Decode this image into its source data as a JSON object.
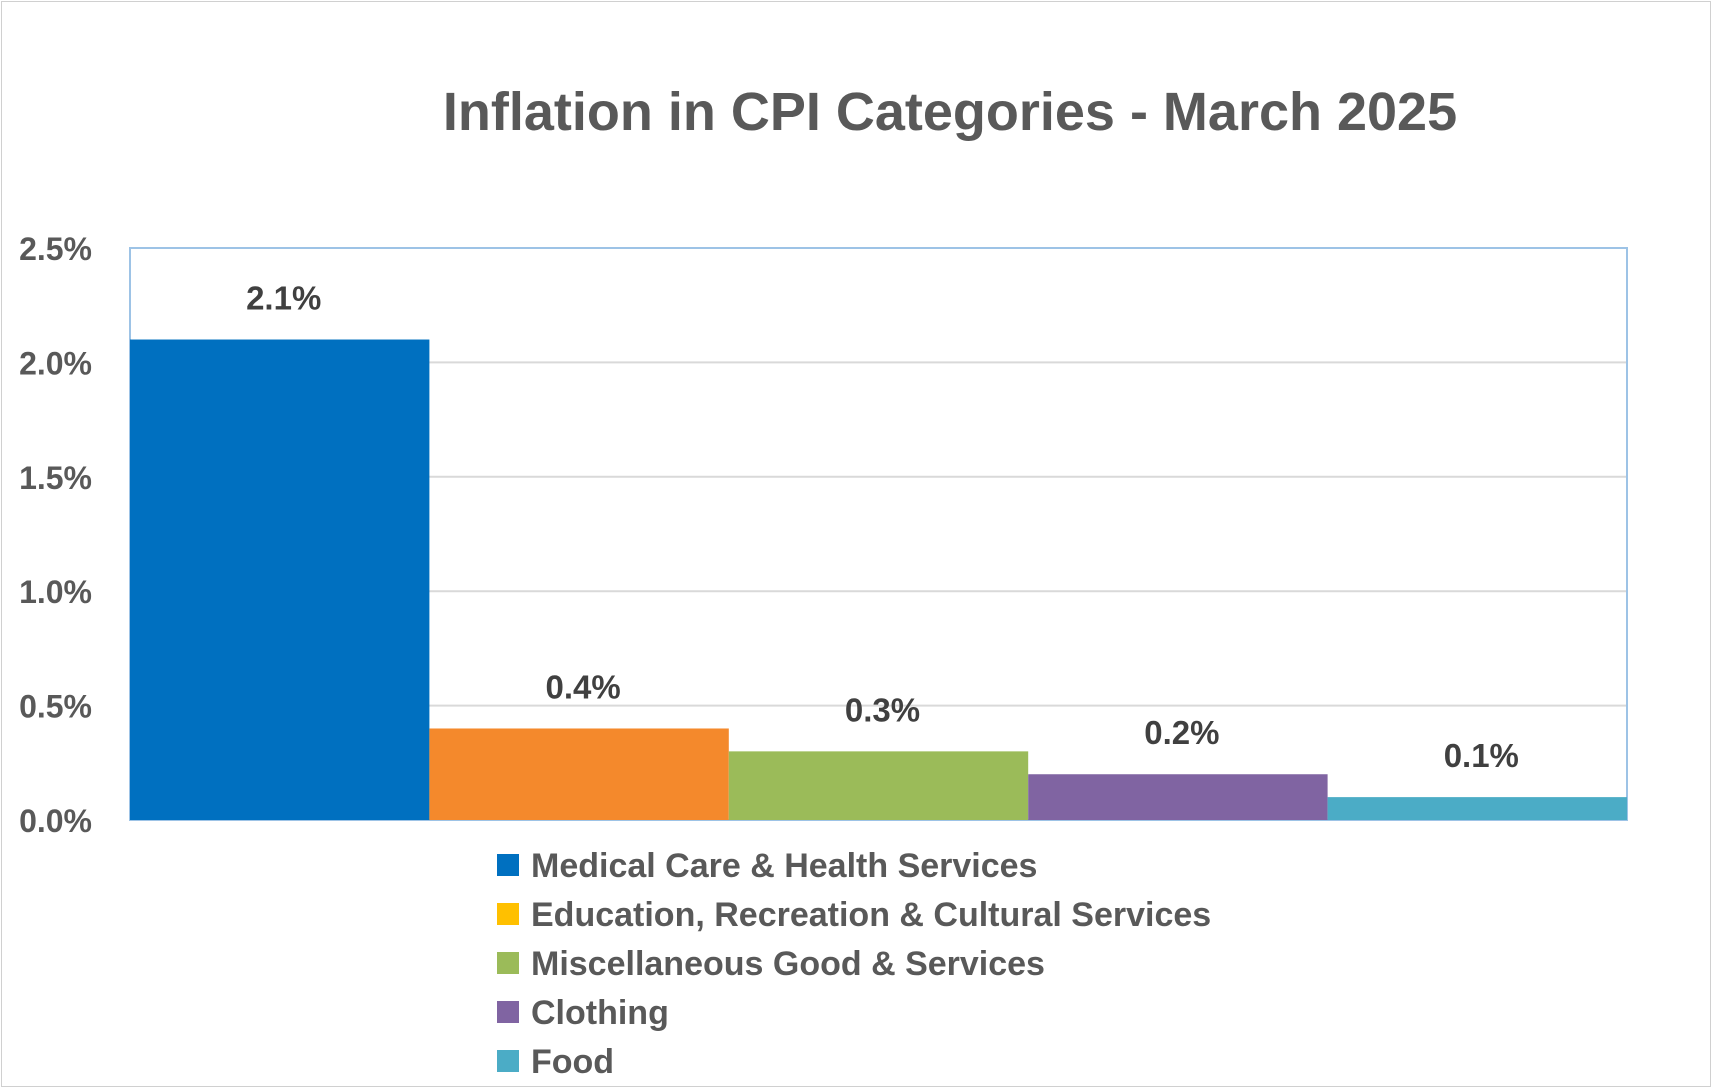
{
  "chart_data": {
    "type": "bar",
    "title": "Inflation in CPI Categories - March 2025",
    "xlabel": "",
    "ylabel": "",
    "ylim": [
      0,
      2.5
    ],
    "yticks": [
      "0.0%",
      "0.5%",
      "1.0%",
      "1.5%",
      "2.0%",
      "2.5%"
    ],
    "grid": true,
    "legend_position": "bottom",
    "series": [
      {
        "name": "Medical Care & Health Services",
        "value": 2.1,
        "label": "2.1%",
        "color": "#0070C0",
        "legend_color": "#0070C0"
      },
      {
        "name": "Education, Recreation & Cultural Services",
        "value": 0.4,
        "label": "0.4%",
        "color": "#F4892C",
        "legend_color": "#FFC000"
      },
      {
        "name": "Miscellaneous Good & Services",
        "value": 0.3,
        "label": "0.3%",
        "color": "#9BBB59",
        "legend_color": "#9BBB59"
      },
      {
        "name": "Clothing",
        "value": 0.2,
        "label": "0.2%",
        "color": "#8064A2",
        "legend_color": "#8064A2"
      },
      {
        "name": "Food",
        "value": 0.1,
        "label": "0.1%",
        "color": "#4BACC6",
        "legend_color": "#4BACC6"
      }
    ]
  }
}
